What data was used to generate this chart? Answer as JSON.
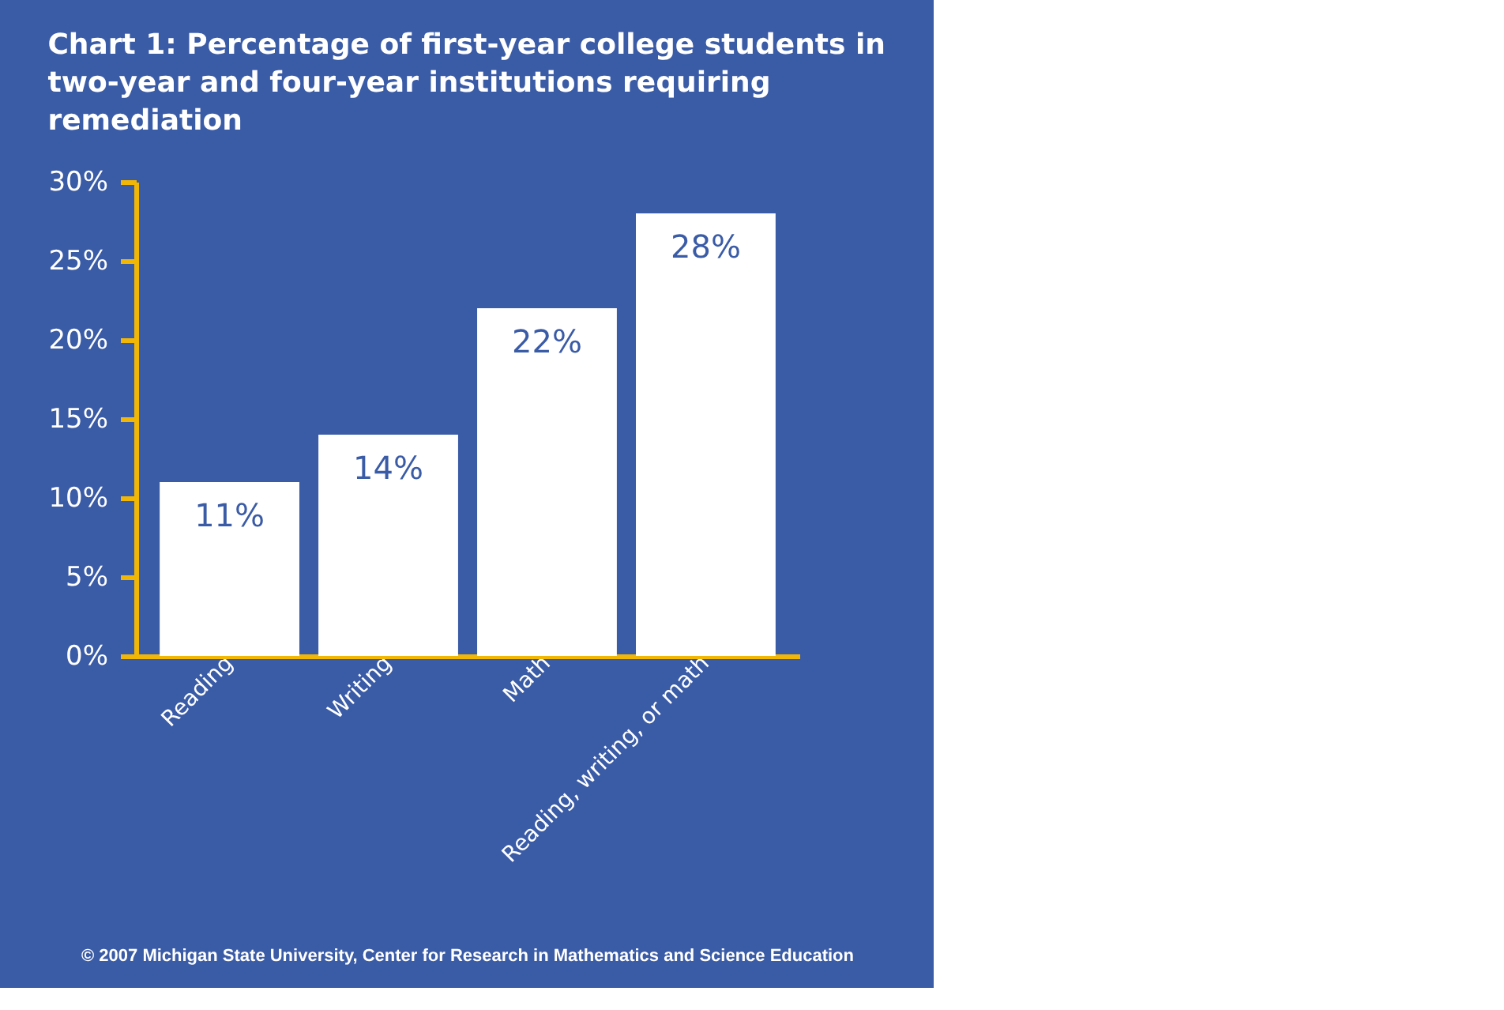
{
  "chart_data": {
    "type": "bar",
    "title": "Chart 1: Percentage of first-year college students in two-year and four-year institutions requiring remediation",
    "categories": [
      "Reading",
      "Writing",
      "Math",
      "Reading, writing, or math"
    ],
    "values": [
      11,
      14,
      22,
      28
    ],
    "color": "#ffffff",
    "value_labels": [
      "11%",
      "14%",
      "22%",
      "28%"
    ],
    "ylim": [
      0,
      30
    ],
    "yticks": [
      {
        "value": 0,
        "label": "0%"
      },
      {
        "value": 5,
        "label": "5%"
      },
      {
        "value": 10,
        "label": "10%"
      },
      {
        "value": 15,
        "label": "15%"
      },
      {
        "value": 20,
        "label": "20%"
      },
      {
        "value": 25,
        "label": "25%"
      },
      {
        "value": 30,
        "label": "30%"
      }
    ],
    "grid": false,
    "annotations": [
      "© 2007 Michigan State University,  Center for Research in Mathematics and Science Education"
    ]
  }
}
